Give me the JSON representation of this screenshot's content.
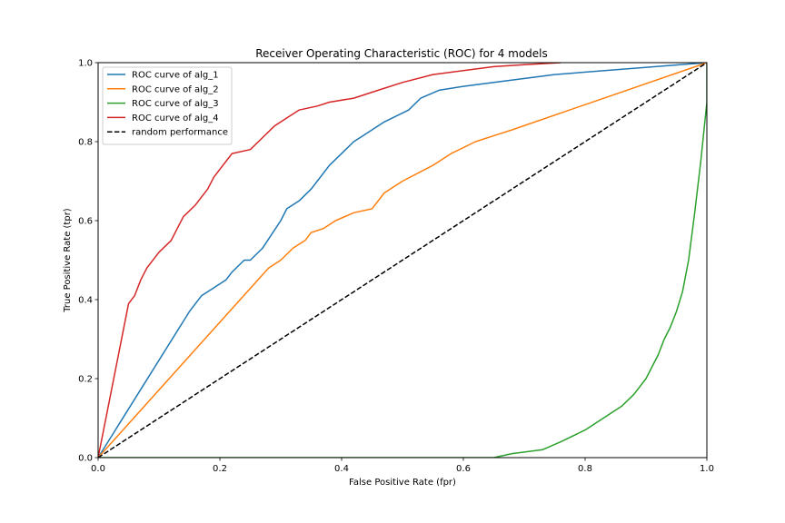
{
  "chart_data": {
    "type": "line",
    "title": "Receiver Operating Characteristic (ROC) for 4 models",
    "xlabel": "False Positive Rate (fpr)",
    "ylabel": "True Positive Rate (tpr)",
    "xlim": [
      0,
      1
    ],
    "ylim": [
      0,
      1
    ],
    "x_ticks": [
      "0.0",
      "0.2",
      "0.4",
      "0.6",
      "0.8",
      "1.0"
    ],
    "y_ticks": [
      "0.0",
      "0.2",
      "0.4",
      "0.6",
      "0.8",
      "1.0"
    ],
    "grid": false,
    "legend_position": "top-left",
    "series": [
      {
        "name": "ROC curve of alg_1",
        "color": "#1f77b4",
        "dash": "solid",
        "x": [
          0,
          0.15,
          0.17,
          0.19,
          0.21,
          0.22,
          0.24,
          0.25,
          0.27,
          0.3,
          0.31,
          0.33,
          0.35,
          0.36,
          0.38,
          0.4,
          0.42,
          0.45,
          0.47,
          0.51,
          0.53,
          0.56,
          0.6,
          0.65,
          0.75,
          1.0
        ],
        "y": [
          0,
          0.37,
          0.41,
          0.43,
          0.45,
          0.47,
          0.5,
          0.5,
          0.53,
          0.6,
          0.63,
          0.65,
          0.68,
          0.7,
          0.74,
          0.77,
          0.8,
          0.83,
          0.85,
          0.88,
          0.91,
          0.93,
          0.94,
          0.95,
          0.97,
          1.0
        ]
      },
      {
        "name": "ROC curve of alg_2",
        "color": "#ff7f0e",
        "dash": "solid",
        "x": [
          0,
          0.28,
          0.3,
          0.32,
          0.34,
          0.35,
          0.37,
          0.39,
          0.42,
          0.45,
          0.47,
          0.5,
          0.55,
          0.58,
          0.62,
          0.66,
          0.68,
          1.0
        ],
        "y": [
          0,
          0.48,
          0.5,
          0.53,
          0.55,
          0.57,
          0.58,
          0.6,
          0.62,
          0.63,
          0.67,
          0.7,
          0.74,
          0.77,
          0.8,
          0.82,
          0.83,
          1.0
        ]
      },
      {
        "name": "ROC curve of alg_3",
        "color": "#2ca02c",
        "dash": "solid",
        "x": [
          0,
          0.65,
          0.68,
          0.73,
          0.76,
          0.8,
          0.83,
          0.86,
          0.88,
          0.9,
          0.91,
          0.92,
          0.93,
          0.94,
          0.95,
          0.96,
          0.97,
          0.98,
          0.99,
          1.0,
          1.0
        ],
        "y": [
          0,
          0.0,
          0.01,
          0.02,
          0.04,
          0.07,
          0.1,
          0.13,
          0.16,
          0.2,
          0.23,
          0.26,
          0.3,
          0.33,
          0.37,
          0.42,
          0.5,
          0.62,
          0.75,
          0.9,
          1.0
        ]
      },
      {
        "name": "ROC curve of alg_4",
        "color": "#d62728",
        "dash": "solid",
        "x": [
          0,
          0.05,
          0.06,
          0.07,
          0.08,
          0.1,
          0.12,
          0.13,
          0.14,
          0.16,
          0.18,
          0.19,
          0.2,
          0.22,
          0.25,
          0.27,
          0.29,
          0.31,
          0.33,
          0.36,
          0.38,
          0.42,
          0.46,
          0.5,
          0.55,
          0.6,
          0.65,
          0.7,
          0.76
        ],
        "y": [
          0,
          0.39,
          0.41,
          0.45,
          0.48,
          0.52,
          0.55,
          0.58,
          0.61,
          0.64,
          0.68,
          0.71,
          0.73,
          0.77,
          0.78,
          0.81,
          0.84,
          0.86,
          0.88,
          0.89,
          0.9,
          0.91,
          0.93,
          0.95,
          0.97,
          0.98,
          0.99,
          0.995,
          1.0
        ]
      },
      {
        "name": "random performance",
        "color": "#000000",
        "dash": "dashed",
        "x": [
          0,
          1
        ],
        "y": [
          0,
          1
        ]
      }
    ]
  }
}
